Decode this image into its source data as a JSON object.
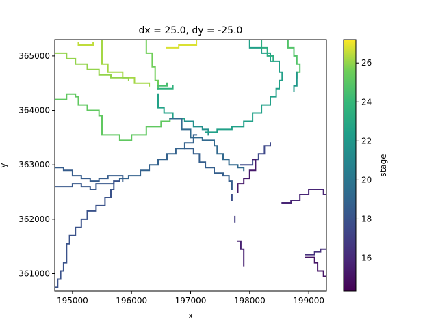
{
  "chart_data": {
    "type": "heatmap",
    "title": "dx = 25.0, dy = -25.0",
    "xlabel": "x",
    "ylabel": "y",
    "xlim": [
      194700,
      199300
    ],
    "ylim": [
      360680,
      365300
    ],
    "x_ticks": [
      195000,
      196000,
      197000,
      198000,
      199000
    ],
    "x_tick_labels": [
      "195000",
      "196000",
      "197000",
      "198000",
      "199000"
    ],
    "y_ticks": [
      361000,
      362000,
      363000,
      364000,
      365000
    ],
    "y_tick_labels": [
      "361000",
      "362000",
      "363000",
      "364000",
      "365000"
    ],
    "colorbar": {
      "label": "stage",
      "colormap": "viridis",
      "range": [
        14.3,
        27.2
      ],
      "ticks": [
        16,
        18,
        20,
        22,
        24,
        26
      ],
      "tick_labels": [
        "16",
        "18",
        "20",
        "22",
        "24",
        "26"
      ]
    },
    "series": [
      {
        "stage": 26.5,
        "points": [
          [
            195100,
            365250
          ],
          [
            195100,
            365200
          ],
          [
            195350,
            365200
          ],
          [
            195350,
            365250
          ]
        ]
      },
      {
        "stage": 26.2,
        "points": [
          [
            195500,
            365300
          ],
          [
            195500,
            364850
          ],
          [
            195600,
            364700
          ],
          [
            195850,
            364600
          ],
          [
            196050,
            364500
          ],
          [
            196300,
            364450
          ]
        ]
      },
      {
        "stage": 26.0,
        "points": [
          [
            194700,
            365050
          ],
          [
            194900,
            364950
          ],
          [
            195050,
            364850
          ],
          [
            195250,
            364750
          ],
          [
            195450,
            364650
          ],
          [
            195650,
            364600
          ],
          [
            195950,
            364550
          ]
        ]
      },
      {
        "stage": 25.6,
        "points": [
          [
            196150,
            365300
          ],
          [
            196250,
            365050
          ],
          [
            196350,
            364800
          ],
          [
            196400,
            364550
          ],
          [
            196450,
            364400
          ]
        ]
      },
      {
        "stage": 25.2,
        "points": [
          [
            194700,
            364200
          ],
          [
            194900,
            364300
          ],
          [
            195050,
            364250
          ],
          [
            195100,
            364100
          ],
          [
            195250,
            364000
          ],
          [
            195450,
            363900
          ],
          [
            195500,
            363800
          ],
          [
            195500,
            363550
          ],
          [
            195700,
            363550
          ],
          [
            195800,
            363450
          ],
          [
            196000,
            363550
          ],
          [
            196250,
            363700
          ],
          [
            196500,
            363800
          ],
          [
            196650,
            363850
          ]
        ]
      },
      {
        "stage": 24.5,
        "points": [
          [
            196450,
            364450
          ],
          [
            196600,
            364500
          ]
        ]
      },
      {
        "stage": 26.8,
        "points": [
          [
            196600,
            365150
          ],
          [
            196800,
            365200
          ],
          [
            197100,
            365300
          ]
        ]
      },
      {
        "stage": 23.6,
        "points": [
          [
            196450,
            364400
          ],
          [
            196700,
            364450
          ]
        ]
      },
      {
        "stage": 22.6,
        "points": [
          [
            196450,
            364300
          ],
          [
            196450,
            364050
          ],
          [
            196550,
            363950
          ],
          [
            196700,
            363850
          ],
          [
            196900,
            363800
          ]
        ]
      },
      {
        "stage": 21.5,
        "points": [
          [
            196900,
            363800
          ],
          [
            197050,
            363700
          ],
          [
            197200,
            363650
          ],
          [
            197300,
            363550
          ]
        ]
      },
      {
        "stage": 22.5,
        "points": [
          [
            197250,
            363600
          ],
          [
            197450,
            363650
          ],
          [
            197700,
            363700
          ],
          [
            197900,
            363800
          ],
          [
            198050,
            363950
          ],
          [
            198200,
            364100
          ],
          [
            198350,
            364250
          ],
          [
            198450,
            364400
          ],
          [
            198500,
            364550
          ],
          [
            198550,
            364700
          ],
          [
            198500,
            364900
          ],
          [
            198350,
            365050
          ],
          [
            198200,
            365150
          ],
          [
            198000,
            365300
          ]
        ]
      },
      {
        "stage": 23.3,
        "points": [
          [
            198100,
            365300
          ],
          [
            198200,
            365150
          ],
          [
            198300,
            365000
          ],
          [
            198400,
            364900
          ]
        ]
      },
      {
        "stage": 24.8,
        "points": [
          [
            198600,
            365300
          ],
          [
            198650,
            365150
          ],
          [
            198750,
            365000
          ],
          [
            198800,
            364850
          ],
          [
            198850,
            364700
          ],
          [
            198800,
            364600
          ]
        ]
      },
      {
        "stage": 22.0,
        "points": [
          [
            198800,
            364700
          ],
          [
            198800,
            364450
          ],
          [
            198750,
            364350
          ]
        ]
      },
      {
        "stage": 19.2,
        "points": [
          [
            196650,
            363850
          ],
          [
            196850,
            363650
          ],
          [
            197000,
            363500
          ],
          [
            197200,
            363450
          ],
          [
            197400,
            363350
          ],
          [
            197450,
            363200
          ],
          [
            197550,
            363100
          ],
          [
            197650,
            363000
          ],
          [
            197800,
            362950
          ],
          [
            197900,
            362900
          ]
        ]
      },
      {
        "stage": 17.5,
        "points": [
          [
            197850,
            363000
          ],
          [
            198050,
            363100
          ],
          [
            198150,
            363200
          ],
          [
            198250,
            363350
          ],
          [
            198350,
            363400
          ]
        ]
      },
      {
        "stage": 15.3,
        "points": [
          [
            198050,
            363100
          ],
          [
            198100,
            362900
          ],
          [
            198000,
            362750
          ],
          [
            197900,
            362650
          ],
          [
            197800,
            362500
          ]
        ]
      },
      {
        "stage": 18.8,
        "points": [
          [
            197100,
            363550
          ],
          [
            197050,
            363400
          ],
          [
            196900,
            363300
          ],
          [
            196750,
            363200
          ],
          [
            196600,
            363100
          ],
          [
            196450,
            363000
          ],
          [
            196300,
            362900
          ],
          [
            196150,
            362800
          ],
          [
            195950,
            362750
          ],
          [
            195800,
            362700
          ]
        ]
      },
      {
        "stage": 18.6,
        "points": [
          [
            196900,
            363300
          ],
          [
            197050,
            363200
          ],
          [
            197150,
            363050
          ],
          [
            197250,
            362950
          ],
          [
            197400,
            362850
          ],
          [
            197550,
            362800
          ],
          [
            197650,
            362700
          ],
          [
            197700,
            362550
          ]
        ]
      },
      {
        "stage": 18.5,
        "points": [
          [
            194700,
            362950
          ],
          [
            194850,
            362900
          ],
          [
            195000,
            362800
          ],
          [
            195150,
            362750
          ],
          [
            195300,
            362700
          ],
          [
            195450,
            362750
          ],
          [
            195600,
            362800
          ],
          [
            195750,
            362800
          ],
          [
            195850,
            362750
          ],
          [
            195850,
            362700
          ]
        ]
      },
      {
        "stage": 18.3,
        "points": [
          [
            194700,
            362600
          ],
          [
            194850,
            362600
          ],
          [
            195000,
            362650
          ],
          [
            195150,
            362600
          ],
          [
            195300,
            362550
          ],
          [
            195400,
            362650
          ],
          [
            195600,
            362650
          ],
          [
            195700,
            362700
          ]
        ]
      },
      {
        "stage": 18.0,
        "points": [
          [
            195800,
            362700
          ],
          [
            195700,
            362550
          ],
          [
            195650,
            362400
          ],
          [
            195550,
            362250
          ],
          [
            195400,
            362150
          ],
          [
            195250,
            362000
          ],
          [
            195150,
            361850
          ],
          [
            195050,
            361700
          ],
          [
            194950,
            361550
          ],
          [
            194900,
            361400
          ],
          [
            194900,
            361200
          ],
          [
            194850,
            361050
          ],
          [
            194800,
            360900
          ],
          [
            194750,
            360750
          ],
          [
            194700,
            360700
          ]
        ]
      },
      {
        "stage": 17.8,
        "points": [
          [
            197700,
            362450
          ],
          [
            197700,
            362350
          ]
        ]
      },
      {
        "stage": 16.8,
        "points": [
          [
            197750,
            362050
          ],
          [
            197750,
            361950
          ]
        ]
      },
      {
        "stage": 15.6,
        "points": [
          [
            197800,
            361600
          ],
          [
            197850,
            361450
          ],
          [
            197900,
            361300
          ],
          [
            197900,
            361150
          ]
        ]
      },
      {
        "stage": 15.8,
        "points": [
          [
            198550,
            362300
          ],
          [
            198700,
            362350
          ],
          [
            198850,
            362450
          ],
          [
            199000,
            362550
          ],
          [
            199150,
            362550
          ],
          [
            199250,
            362450
          ],
          [
            199300,
            362400
          ]
        ]
      },
      {
        "stage": 16.3,
        "points": [
          [
            198950,
            361350
          ],
          [
            199100,
            361400
          ],
          [
            199200,
            361450
          ],
          [
            199300,
            361500
          ]
        ]
      },
      {
        "stage": 15.1,
        "points": [
          [
            198950,
            361300
          ],
          [
            199100,
            361200
          ],
          [
            199150,
            361050
          ],
          [
            199250,
            360950
          ],
          [
            199300,
            360950
          ]
        ]
      }
    ]
  }
}
